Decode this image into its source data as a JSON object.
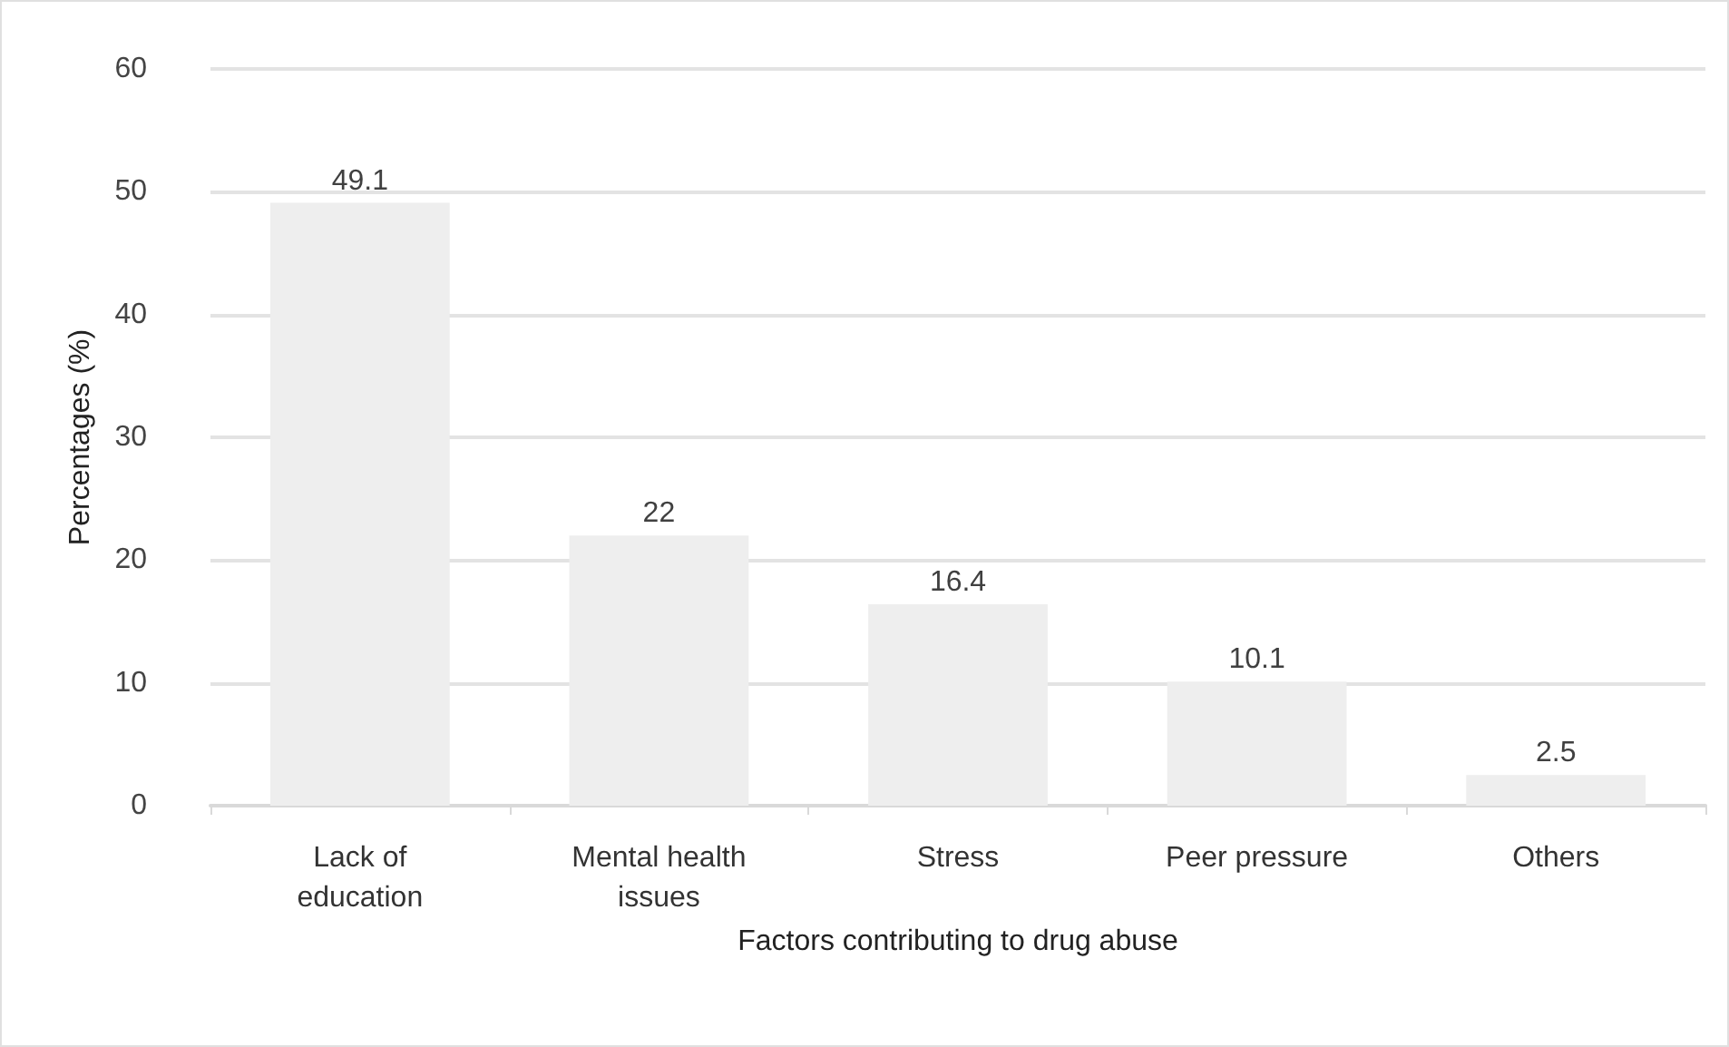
{
  "chart_data": {
    "type": "bar",
    "xlabel": "Factors contributing to drug abuse",
    "ylabel": "Percentages (%)",
    "categories": [
      "Lack of\neducation",
      "Mental health\nissues",
      "Stress",
      "Peer pressure",
      "Others"
    ],
    "values": [
      49.1,
      22,
      16.4,
      10.1,
      2.5
    ],
    "color": "#eeeeee",
    "ylim": [
      0,
      60
    ],
    "yticks": [
      0,
      10,
      20,
      30,
      40,
      50,
      60
    ],
    "grid": "y",
    "data_labels": true
  }
}
